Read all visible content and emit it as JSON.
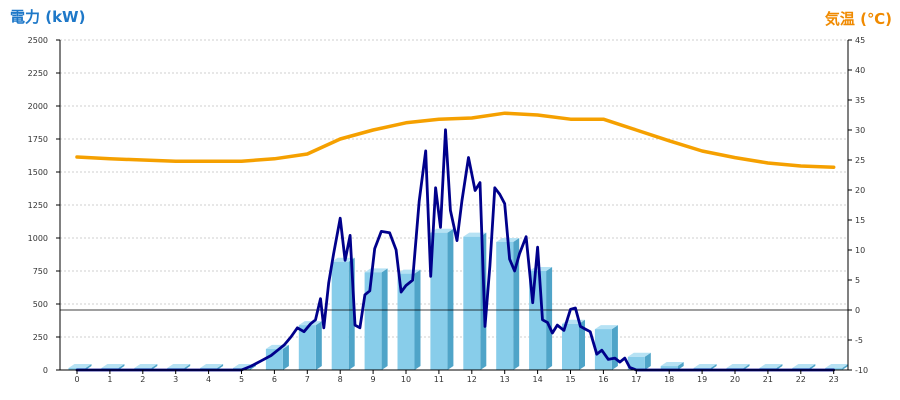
{
  "chart_data": {
    "type": "bar+line",
    "left_axis": {
      "title": "電力 (kW)",
      "ylim": [
        0,
        2500
      ],
      "ticks": [
        0,
        250,
        500,
        750,
        1000,
        1250,
        1500,
        1750,
        2000,
        2250,
        2500
      ],
      "tick_labels": [
        "0",
        "250",
        "500",
        "750",
        "1000",
        "1250",
        "1500",
        "1750",
        "2000",
        "2250",
        "2500"
      ]
    },
    "right_axis": {
      "title": "気温 (℃)",
      "ylim": [
        -10,
        45
      ],
      "ticks": [
        -10,
        -5,
        0,
        5,
        10,
        15,
        20,
        25,
        30,
        35,
        40,
        45
      ],
      "tick_labels": [
        "-10",
        "-5",
        "0",
        "5",
        "10",
        "15",
        "20",
        "25",
        "30",
        "35",
        "40",
        "45"
      ]
    },
    "categories": [
      "0",
      "1",
      "2",
      "3",
      "4",
      "5",
      "6",
      "7",
      "8",
      "9",
      "10",
      "11",
      "12",
      "13",
      "14",
      "15",
      "16",
      "17",
      "18",
      "19",
      "20",
      "21",
      "22",
      "23"
    ],
    "series": [
      {
        "kind": "bar",
        "axis": "left",
        "values": [
          15,
          15,
          15,
          15,
          15,
          15,
          160,
          340,
          820,
          740,
          730,
          1040,
          1010,
          970,
          750,
          350,
          310,
          100,
          30,
          15,
          15,
          15,
          15,
          15
        ]
      },
      {
        "kind": "line",
        "axis": "left",
        "x": [
          0,
          1,
          2,
          3,
          4,
          5,
          5.3,
          5.6,
          5.9,
          6.1,
          6.3,
          6.5,
          6.7,
          6.9,
          7.1,
          7.25,
          7.4,
          7.5,
          7.65,
          7.8,
          8.0,
          8.15,
          8.3,
          8.45,
          8.6,
          8.75,
          8.9,
          9.05,
          9.25,
          9.5,
          9.7,
          9.85,
          10.0,
          10.2,
          10.4,
          10.6,
          10.75,
          10.9,
          11.05,
          11.2,
          11.35,
          11.55,
          11.7,
          11.9,
          12.1,
          12.25,
          12.4,
          12.55,
          12.7,
          12.85,
          13.0,
          13.15,
          13.3,
          13.45,
          13.65,
          13.85,
          14.0,
          14.15,
          14.3,
          14.45,
          14.6,
          14.8,
          15.0,
          15.15,
          15.3,
          15.45,
          15.6,
          15.8,
          15.95,
          16.15,
          16.35,
          16.5,
          16.65,
          16.8,
          17.0,
          17.2,
          17.4,
          17.6,
          17.8,
          18,
          19,
          20,
          21,
          22,
          23
        ],
        "values": [
          0,
          0,
          0,
          0,
          0,
          0,
          30,
          70,
          110,
          150,
          190,
          250,
          320,
          290,
          350,
          380,
          540,
          320,
          660,
          880,
          1150,
          830,
          1020,
          340,
          320,
          570,
          600,
          920,
          1050,
          1040,
          910,
          590,
          640,
          680,
          1280,
          1660,
          710,
          1380,
          1080,
          1820,
          1210,
          980,
          1280,
          1610,
          1360,
          1420,
          330,
          790,
          1380,
          1330,
          1260,
          840,
          750,
          880,
          1010,
          510,
          930,
          380,
          360,
          280,
          340,
          300,
          460,
          470,
          330,
          310,
          290,
          120,
          150,
          80,
          90,
          60,
          90,
          20,
          0,
          0,
          0,
          0,
          0,
          0,
          0,
          0,
          0,
          0,
          0
        ]
      },
      {
        "kind": "line",
        "axis": "right",
        "values": [
          25.5,
          25.2,
          25.0,
          24.8,
          24.8,
          24.8,
          25.2,
          26.0,
          28.5,
          30.0,
          31.2,
          31.8,
          32.0,
          32.8,
          32.5,
          31.8,
          31.8,
          30.0,
          28.2,
          26.5,
          25.4,
          24.5,
          24.0,
          23.8
        ]
      }
    ],
    "reference_line": {
      "axis": "right",
      "value": 0
    },
    "grid": {
      "horizontal": true,
      "vertical": false
    },
    "colors": {
      "bar_front": "#88cdea",
      "bar_side": "#4fa4c8",
      "bar_top": "#b6e2f4",
      "power_line": "#00008b",
      "temp_line": "#f5a000",
      "left_title": "#1e78c8",
      "right_title": "#f08a00",
      "grid": "#c0c0c0",
      "axis": "#000000"
    }
  }
}
